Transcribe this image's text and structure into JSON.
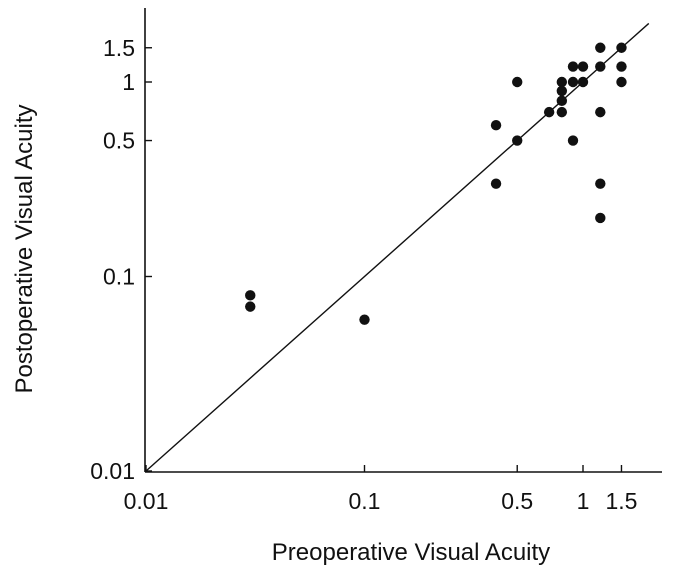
{
  "chart_data": {
    "type": "scatter",
    "xlabel": "Preoperative Visual Acuity",
    "ylabel": "Postoperative Visual Acuity",
    "x_scale": "log",
    "y_scale": "log",
    "xlim": [
      0.01,
      2
    ],
    "ylim": [
      0.01,
      2
    ],
    "xticks": [
      {
        "value": 0.01,
        "label": "0.01"
      },
      {
        "value": 0.1,
        "label": "0.1"
      },
      {
        "value": 0.5,
        "label": "0.5"
      },
      {
        "value": 1,
        "label": "1"
      },
      {
        "value": 1.5,
        "label": "1.5"
      }
    ],
    "yticks": [
      {
        "value": 0.01,
        "label": "0.01"
      },
      {
        "value": 0.1,
        "label": "0.1"
      },
      {
        "value": 0.5,
        "label": "0.5"
      },
      {
        "value": 1,
        "label": "1"
      },
      {
        "value": 1.5,
        "label": "1.5"
      }
    ],
    "reference_line": {
      "from": [
        0.01,
        0.01
      ],
      "to": [
        2,
        2
      ]
    },
    "grid": false,
    "legend": "none",
    "colors": {
      "points": "#111111",
      "axes": "#111111"
    },
    "points": [
      {
        "x": 0.03,
        "y": 0.08
      },
      {
        "x": 0.03,
        "y": 0.07
      },
      {
        "x": 0.1,
        "y": 0.06
      },
      {
        "x": 0.4,
        "y": 0.6
      },
      {
        "x": 0.4,
        "y": 0.3
      },
      {
        "x": 0.5,
        "y": 1.0
      },
      {
        "x": 0.5,
        "y": 0.5
      },
      {
        "x": 0.7,
        "y": 0.7
      },
      {
        "x": 0.8,
        "y": 1.0
      },
      {
        "x": 0.8,
        "y": 0.9
      },
      {
        "x": 0.8,
        "y": 0.8
      },
      {
        "x": 0.8,
        "y": 0.7
      },
      {
        "x": 0.9,
        "y": 1.2
      },
      {
        "x": 0.9,
        "y": 1.0
      },
      {
        "x": 0.9,
        "y": 0.5
      },
      {
        "x": 1.0,
        "y": 1.2
      },
      {
        "x": 1.0,
        "y": 1.0
      },
      {
        "x": 1.2,
        "y": 1.5
      },
      {
        "x": 1.2,
        "y": 1.2
      },
      {
        "x": 1.2,
        "y": 0.7
      },
      {
        "x": 1.2,
        "y": 0.3
      },
      {
        "x": 1.2,
        "y": 0.2
      },
      {
        "x": 1.5,
        "y": 1.5
      },
      {
        "x": 1.5,
        "y": 1.2
      },
      {
        "x": 1.5,
        "y": 1.0
      }
    ]
  }
}
